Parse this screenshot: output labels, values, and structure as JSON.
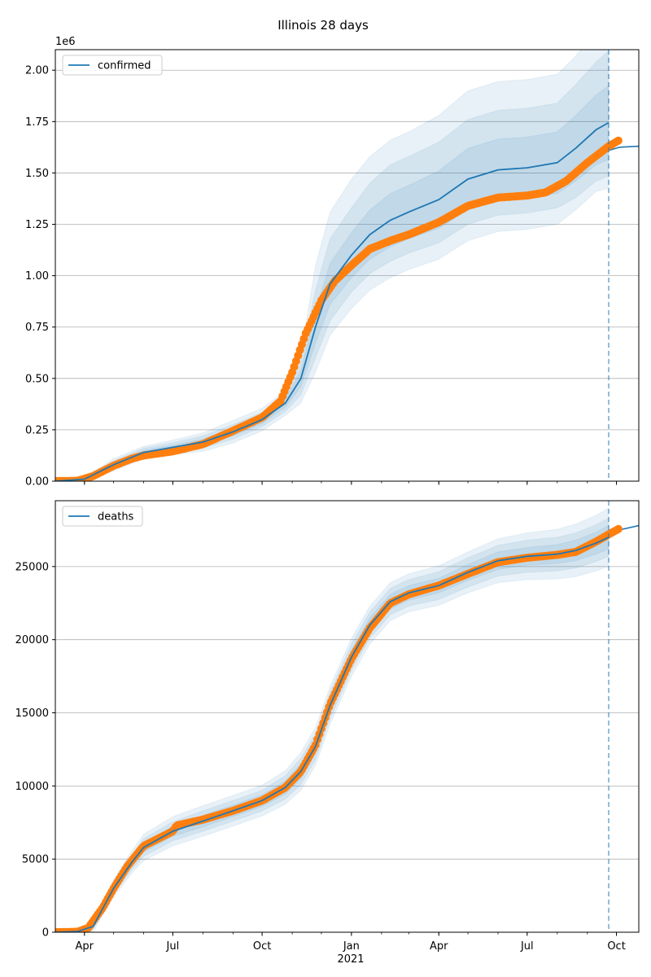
{
  "figure": {
    "title": "Illinois 28 days",
    "year_label": "2021"
  },
  "chart_data": [
    {
      "type": "line",
      "id": "confirmed",
      "legend": "top-left",
      "grid": "horizontal",
      "x_ticks": [
        "Apr",
        "Jul",
        "Oct",
        "Jan",
        "Apr",
        "Jul",
        "Oct"
      ],
      "x_tick_dates": [
        "2020-04-01",
        "2020-07-01",
        "2020-10-01",
        "2021-01-01",
        "2021-04-01",
        "2021-07-01",
        "2021-10-01"
      ],
      "xlim": [
        "2020-03-02",
        "2021-10-24"
      ],
      "ylim": [
        0,
        2100000
      ],
      "y_ticks": [
        0,
        250000,
        500000,
        750000,
        1000000,
        1250000,
        1500000,
        1750000,
        2000000
      ],
      "y_tick_labels": [
        "0.00",
        "0.25",
        "0.50",
        "0.75",
        "1.00",
        "1.25",
        "1.50",
        "1.75",
        "2.00"
      ],
      "y_offset_label": "1e6",
      "forecast_start": "2021-09-23",
      "model": {
        "name": "confirmed",
        "color": "#1f77b4",
        "x": [
          "2020-03-02",
          "2020-04-01",
          "2020-05-01",
          "2020-06-01",
          "2020-07-01",
          "2020-08-01",
          "2020-09-01",
          "2020-10-01",
          "2020-10-25",
          "2020-11-10",
          "2020-11-25",
          "2020-12-10",
          "2021-01-01",
          "2021-01-20",
          "2021-02-10",
          "2021-03-01",
          "2021-04-01",
          "2021-05-01",
          "2021-06-01",
          "2021-07-01",
          "2021-08-01",
          "2021-08-20",
          "2021-09-10",
          "2021-09-23"
        ],
        "y": [
          0,
          10000,
          80000,
          140000,
          165000,
          190000,
          240000,
          300000,
          380000,
          500000,
          750000,
          960000,
          1100000,
          1200000,
          1270000,
          1310000,
          1370000,
          1470000,
          1515000,
          1525000,
          1550000,
          1620000,
          1710000,
          1745000
        ],
        "band_offsets": [
          {
            "lower": [
              0,
              2000,
              10000,
              10000,
              10000,
              15000,
              20000,
              20000,
              20000,
              40000,
              80000,
              100000,
              110000,
              120000,
              130000,
              130000,
              140000,
              150000,
              150000,
              150000,
              150000,
              160000,
              170000,
              180000
            ],
            "upper": [
              0,
              2000,
              10000,
              10000,
              10000,
              15000,
              20000,
              20000,
              20000,
              40000,
              80000,
              100000,
              110000,
              120000,
              130000,
              130000,
              140000,
              150000,
              150000,
              150000,
              150000,
              160000,
              170000,
              180000
            ]
          },
          {
            "lower": [
              0,
              4000,
              20000,
              20000,
              22000,
              30000,
              35000,
              35000,
              40000,
              80000,
              150000,
              180000,
              180000,
              190000,
              200000,
              200000,
              210000,
              220000,
              220000,
              220000,
              220000,
              240000,
              250000,
              260000
            ],
            "upper": [
              0,
              4000,
              20000,
              20000,
              22000,
              30000,
              35000,
              35000,
              40000,
              80000,
              180000,
              220000,
              230000,
              250000,
              270000,
              270000,
              280000,
              290000,
              290000,
              290000,
              290000,
              310000,
              330000,
              350000
            ]
          },
          {
            "lower": [
              0,
              8000,
              30000,
              30000,
              35000,
              45000,
              55000,
              55000,
              60000,
              120000,
              220000,
              250000,
              260000,
              270000,
              280000,
              280000,
              290000,
              300000,
              300000,
              300000,
              300000,
              300000,
              300000,
              320000
            ],
            "upper": [
              0,
              8000,
              30000,
              30000,
              35000,
              45000,
              55000,
              55000,
              60000,
              120000,
              300000,
              350000,
              370000,
              380000,
              390000,
              390000,
              410000,
              430000,
              430000,
              430000,
              430000,
              450000,
              480000,
              500000
            ]
          }
        ]
      },
      "observed": {
        "color": "#ff7f0e",
        "x": [
          "2020-03-02",
          "2020-03-25",
          "2020-04-10",
          "2020-05-01",
          "2020-05-20",
          "2020-06-01",
          "2020-07-01",
          "2020-08-01",
          "2020-09-01",
          "2020-10-01",
          "2020-10-20",
          "2020-11-01",
          "2020-11-15",
          "2020-12-01",
          "2020-12-15",
          "2021-01-01",
          "2021-01-20",
          "2021-02-10",
          "2021-03-01",
          "2021-04-01",
          "2021-05-01",
          "2021-06-01",
          "2021-07-01",
          "2021-07-20",
          "2021-08-10",
          "2021-09-01",
          "2021-09-23",
          "2021-10-04"
        ],
        "y": [
          0,
          2000,
          25000,
          75000,
          110000,
          125000,
          145000,
          180000,
          245000,
          310000,
          390000,
          530000,
          720000,
          880000,
          975000,
          1050000,
          1130000,
          1170000,
          1200000,
          1260000,
          1340000,
          1380000,
          1390000,
          1405000,
          1460000,
          1550000,
          1630000,
          1660000
        ]
      },
      "projection": {
        "x": [
          "2021-09-23",
          "2021-10-04",
          "2021-10-24"
        ],
        "y": [
          1610000,
          1625000,
          1630000
        ]
      }
    },
    {
      "type": "line",
      "id": "deaths",
      "legend": "top-left",
      "grid": "horizontal",
      "x_ticks": [
        "Apr",
        "Jul",
        "Oct",
        "Jan",
        "Apr",
        "Jul",
        "Oct"
      ],
      "x_tick_dates": [
        "2020-04-01",
        "2020-07-01",
        "2020-10-01",
        "2021-01-01",
        "2021-04-01",
        "2021-07-01",
        "2021-10-01"
      ],
      "xlim": [
        "2020-03-02",
        "2021-10-24"
      ],
      "ylim": [
        0,
        29500
      ],
      "y_ticks": [
        0,
        5000,
        10000,
        15000,
        20000,
        25000
      ],
      "y_tick_labels": [
        "0",
        "5000",
        "10000",
        "15000",
        "20000",
        "25000"
      ],
      "forecast_start": "2021-09-23",
      "model": {
        "name": "deaths",
        "color": "#1f77b4",
        "x": [
          "2020-03-02",
          "2020-03-25",
          "2020-04-10",
          "2020-05-01",
          "2020-05-20",
          "2020-06-01",
          "2020-07-01",
          "2020-08-01",
          "2020-09-01",
          "2020-10-01",
          "2020-10-25",
          "2020-11-10",
          "2020-11-25",
          "2020-12-10",
          "2021-01-01",
          "2021-01-20",
          "2021-02-10",
          "2021-03-01",
          "2021-04-01",
          "2021-05-01",
          "2021-06-01",
          "2021-07-01",
          "2021-08-01",
          "2021-08-20",
          "2021-09-10",
          "2021-09-23"
        ],
        "y": [
          0,
          50,
          400,
          3000,
          4800,
          5800,
          6900,
          7600,
          8300,
          9000,
          9900,
          11000,
          12700,
          15500,
          18800,
          21000,
          22600,
          23200,
          23700,
          24600,
          25400,
          25700,
          25850,
          26100,
          26600,
          27000
        ],
        "band_offsets": [
          {
            "lower": [
              0,
              30,
              100,
              200,
              250,
              300,
              350,
              400,
              400,
              400,
              450,
              500,
              500,
              500,
              500,
              500,
              500,
              500,
              500,
              550,
              600,
              600,
              650,
              700,
              750,
              800
            ],
            "upper": [
              0,
              30,
              100,
              200,
              250,
              300,
              350,
              400,
              400,
              400,
              450,
              500,
              500,
              500,
              500,
              500,
              500,
              500,
              500,
              550,
              600,
              600,
              650,
              700,
              750,
              800
            ]
          },
          {
            "lower": [
              0,
              60,
              200,
              400,
              500,
              600,
              650,
              700,
              700,
              700,
              800,
              900,
              900,
              900,
              900,
              900,
              900,
              900,
              950,
              1000,
              1050,
              1100,
              1150,
              1200,
              1250,
              1300
            ],
            "upper": [
              0,
              60,
              200,
              400,
              500,
              600,
              650,
              700,
              700,
              700,
              800,
              900,
              900,
              900,
              900,
              900,
              900,
              900,
              950,
              1000,
              1050,
              1100,
              1150,
              1200,
              1250,
              1300
            ]
          },
          {
            "lower": [
              0,
              100,
              350,
              600,
              750,
              900,
              1000,
              1050,
              1050,
              1050,
              1150,
              1300,
              1300,
              1300,
              1300,
              1300,
              1300,
              1300,
              1350,
              1400,
              1500,
              1600,
              1700,
              1800,
              1900,
              2000
            ],
            "upper": [
              0,
              100,
              350,
              600,
              750,
              900,
              1000,
              1050,
              1050,
              1050,
              1150,
              1300,
              1300,
              1300,
              1300,
              1300,
              1300,
              1300,
              1350,
              1400,
              1500,
              1600,
              1700,
              1800,
              1900,
              2000
            ]
          }
        ]
      },
      "observed": {
        "color": "#ff7f0e",
        "x": [
          "2020-03-02",
          "2020-03-25",
          "2020-04-05",
          "2020-04-20",
          "2020-05-01",
          "2020-05-15",
          "2020-06-01",
          "2020-07-01",
          "2020-07-05",
          "2020-08-01",
          "2020-09-01",
          "2020-10-01",
          "2020-10-25",
          "2020-11-10",
          "2020-11-25",
          "2020-12-10",
          "2021-01-01",
          "2021-01-20",
          "2021-02-10",
          "2021-03-01",
          "2021-04-01",
          "2021-05-01",
          "2021-06-01",
          "2021-07-01",
          "2021-08-01",
          "2021-08-20",
          "2021-09-10",
          "2021-09-23",
          "2021-10-04"
        ],
        "y": [
          0,
          30,
          300,
          1700,
          3000,
          4500,
          5900,
          6900,
          7300,
          7700,
          8300,
          9000,
          9900,
          11000,
          12800,
          15600,
          18700,
          20800,
          22500,
          23100,
          23700,
          24500,
          25300,
          25600,
          25800,
          26000,
          26700,
          27200,
          27600
        ]
      },
      "projection": {
        "x": [
          "2021-09-23",
          "2021-10-04",
          "2021-10-24"
        ],
        "y": [
          27200,
          27500,
          27800
        ]
      }
    }
  ]
}
